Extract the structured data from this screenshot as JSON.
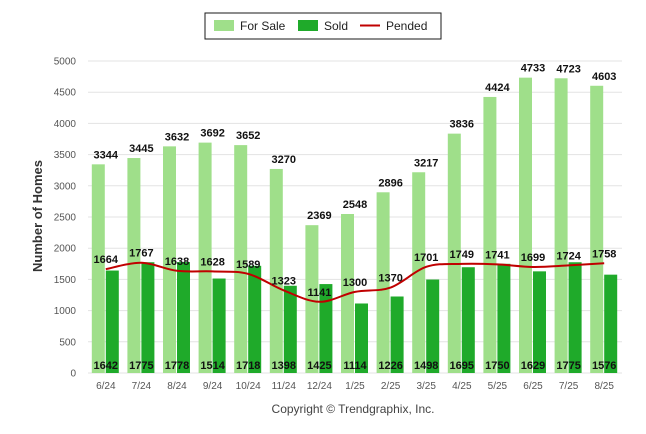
{
  "chart_data": {
    "type": "bar",
    "ylabel": "Number of Homes",
    "ylim": [
      0,
      5000
    ],
    "yticks": [
      0,
      500,
      1000,
      1500,
      2000,
      2500,
      3000,
      3500,
      4000,
      4500,
      5000
    ],
    "grid": true,
    "legend_position": "top-center",
    "categories": [
      "6/24",
      "7/24",
      "8/24",
      "9/24",
      "10/24",
      "11/24",
      "12/24",
      "1/25",
      "2/25",
      "3/25",
      "4/25",
      "5/25",
      "6/25",
      "7/25",
      "8/25"
    ],
    "series": [
      {
        "name": "For Sale",
        "kind": "bar",
        "color": "#9fdf8a",
        "values": [
          3344,
          3445,
          3632,
          3692,
          3652,
          3270,
          2369,
          2548,
          2896,
          3217,
          3836,
          4424,
          4733,
          4723,
          4603
        ]
      },
      {
        "name": "Sold",
        "kind": "bar",
        "color": "#1faa2a",
        "values": [
          1642,
          1775,
          1778,
          1514,
          1718,
          1398,
          1425,
          1114,
          1226,
          1498,
          1695,
          1750,
          1629,
          1775,
          1576
        ]
      },
      {
        "name": "Pended",
        "kind": "line",
        "color": "#c00000",
        "values": [
          1664,
          1767,
          1638,
          1628,
          1589,
          1323,
          1141,
          1300,
          1370,
          1701,
          1749,
          1741,
          1699,
          1724,
          1758
        ]
      }
    ]
  },
  "footer": {
    "copyright": "Copyright © Trendgraphix, Inc."
  }
}
